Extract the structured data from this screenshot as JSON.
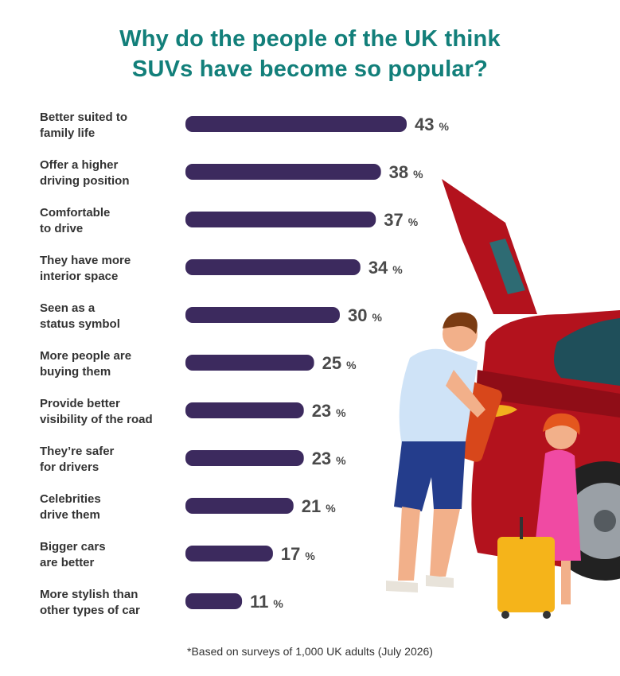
{
  "title_lines": [
    "Why do the people of the UK think",
    "SUVs have become so popular?"
  ],
  "footnote": "*Based on surveys of 1,000 UK adults (July 2026)",
  "colors": {
    "title": "#127f7a",
    "bar": "#3c2a5e",
    "value": "#4a4a4a",
    "label": "#333333"
  },
  "chart_data": {
    "type": "bar",
    "orientation": "horizontal",
    "categories": [
      [
        "Better suited to",
        "family life"
      ],
      [
        "Offer a higher",
        "driving position"
      ],
      [
        "Comfortable",
        "to drive"
      ],
      [
        "They have more",
        "interior space"
      ],
      [
        "Seen as a",
        "status symbol"
      ],
      [
        "More people are",
        "buying them"
      ],
      [
        "Provide better",
        "visibility of the road"
      ],
      [
        "They’re safer",
        "for drivers"
      ],
      [
        "Celebrities",
        "drive them"
      ],
      [
        "Bigger cars",
        "are better"
      ],
      [
        "More stylish than",
        "other types of car"
      ]
    ],
    "values": [
      43,
      38,
      37,
      34,
      30,
      25,
      23,
      23,
      21,
      17,
      11
    ],
    "unit": "%",
    "grid": false,
    "legend": "none"
  }
}
